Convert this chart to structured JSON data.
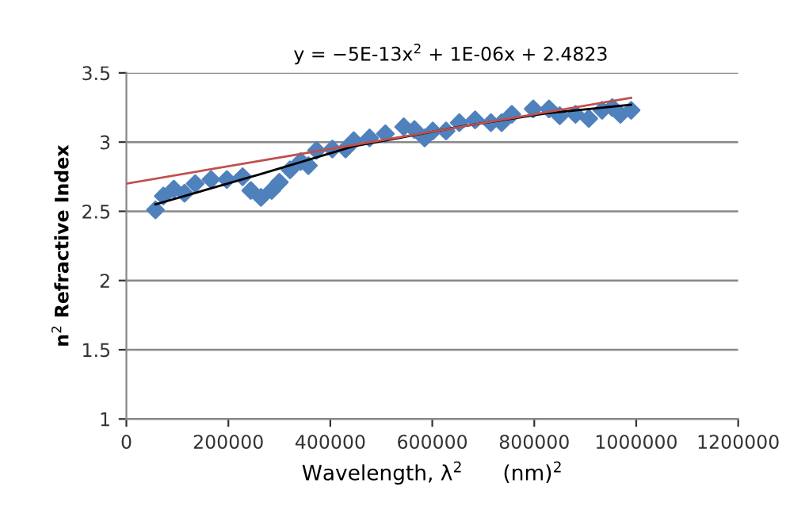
{
  "chart_data": {
    "type": "scatter",
    "xlabel": "Wavelength, λ$^{2}$      (nm)$^{2}$",
    "ylabel": "n$^{2}$ Refractive Index",
    "annotations": [
      "y = −5E-13x$^{2}$ + 1E-06x + 2.4823"
    ],
    "xlim": [
      0,
      1200000
    ],
    "xticks": [
      0,
      200000,
      400000,
      600000,
      800000,
      1000000,
      1200000
    ],
    "ylim": [
      1,
      3.5
    ],
    "yticks": [
      1,
      1.5,
      2,
      2.5,
      3,
      3.5
    ],
    "grid": "y",
    "legend": false,
    "series": [
      {
        "marker": "diamond",
        "color": "#4f81bd",
        "x": [
          57000,
          72500,
          93000,
          114000,
          135000,
          166000,
          197000,
          228000,
          244000,
          264000,
          285000,
          300000,
          321000,
          342000,
          357000,
          373000,
          404000,
          430000,
          446000,
          477000,
          508000,
          544000,
          565000,
          585000,
          601000,
          627000,
          653000,
          684000,
          715000,
          736000,
          756000,
          798000,
          829000,
          850000,
          881000,
          907000,
          933000,
          953000,
          969000,
          990000
        ],
        "values": [
          2.51,
          2.61,
          2.66,
          2.63,
          2.7,
          2.73,
          2.73,
          2.75,
          2.65,
          2.6,
          2.65,
          2.71,
          2.8,
          2.86,
          2.83,
          2.94,
          2.95,
          2.95,
          3.01,
          3.03,
          3.06,
          3.11,
          3.09,
          3.03,
          3.08,
          3.08,
          3.14,
          3.16,
          3.14,
          3.14,
          3.2,
          3.24,
          3.24,
          3.19,
          3.2,
          3.17,
          3.23,
          3.25,
          3.2,
          3.23
        ]
      },
      {
        "type": "line",
        "marker": "none",
        "color": "#000000",
        "x": [
          57000,
          264000,
          446000,
          653000,
          829000,
          990000
        ],
        "values": [
          2.55,
          2.77,
          2.97,
          3.11,
          3.21,
          3.27
        ]
      },
      {
        "type": "line",
        "marker": "none",
        "color": "#c0504d",
        "x": [
          0,
          990000
        ],
        "values": [
          2.7,
          3.32
        ]
      }
    ]
  }
}
